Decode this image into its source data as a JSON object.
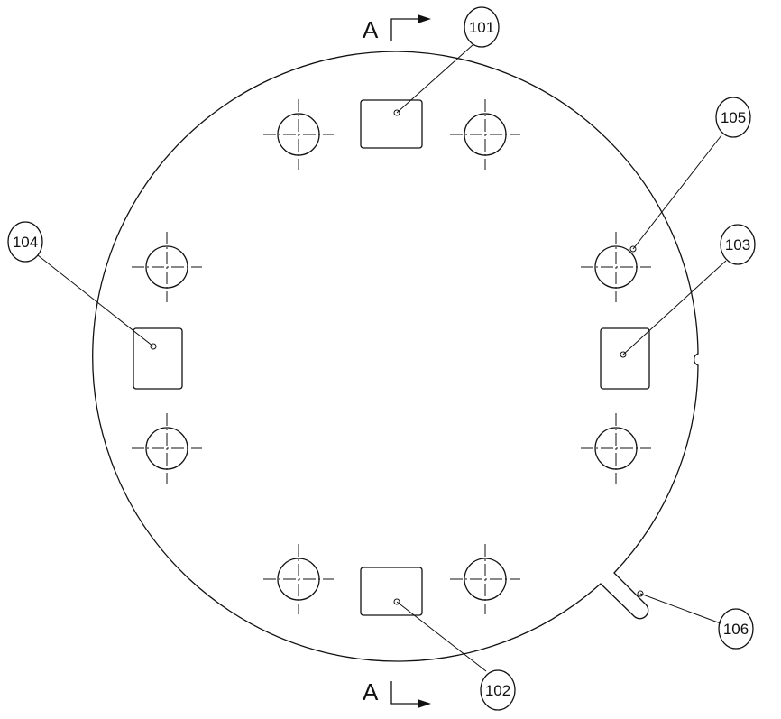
{
  "section": {
    "letter_top": "A",
    "letter_bottom": "A"
  },
  "callouts": {
    "c101": "101",
    "c102": "102",
    "c103": "103",
    "c104": "104",
    "c105": "105",
    "c106": "106"
  }
}
